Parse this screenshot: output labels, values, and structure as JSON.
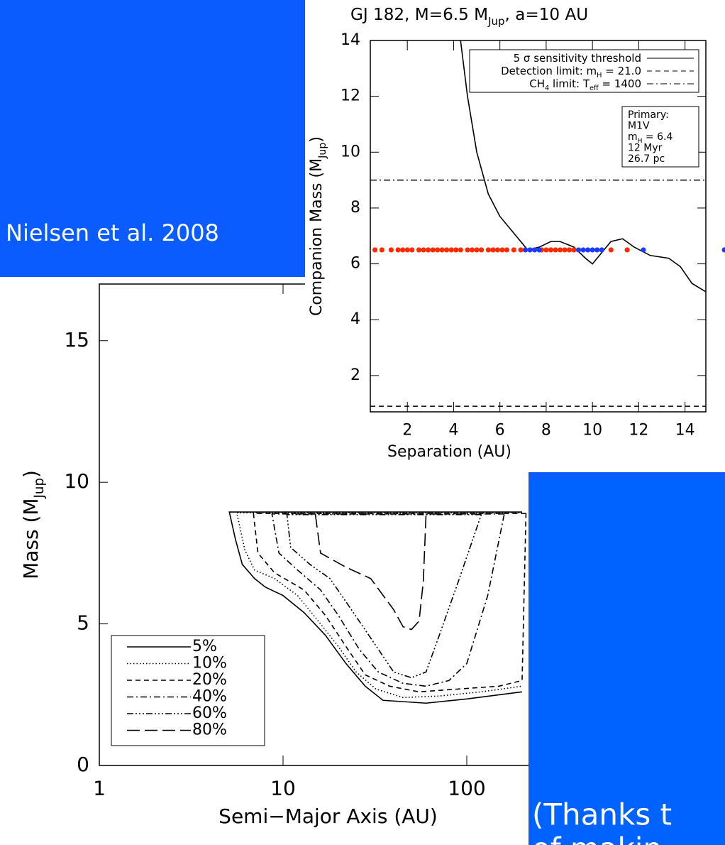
{
  "citation": "Nielsen et al. 2008",
  "thanks_lines": [
    "(Thanks t",
    "of makin"
  ],
  "chart_data": [
    {
      "type": "contour",
      "xlabel": "Semi−Major Axis (AU)",
      "ylabel": [
        "Mass (M",
        "Jup",
        ")"
      ],
      "xscale": "log",
      "xlim": [
        1,
        1000
      ],
      "ylim": [
        0,
        17
      ],
      "xticks": [
        1,
        10,
        100
      ],
      "yticks": [
        0,
        5,
        10,
        15
      ],
      "legend": "lower left",
      "color": "#000000",
      "series": [
        {
          "name": "5%",
          "linestyle": "solid",
          "x": [
            200,
            5.1,
            5.5,
            6,
            7,
            8,
            10,
            13,
            17,
            22,
            28,
            35,
            60,
            100,
            200
          ],
          "values": [
            8.95,
            8.95,
            8.0,
            7.1,
            6.6,
            6.3,
            6.0,
            5.4,
            4.6,
            3.6,
            2.8,
            2.3,
            2.2,
            2.35,
            2.6
          ]
        },
        {
          "name": "10%",
          "linestyle": "dotted",
          "x": [
            200,
            5.6,
            6.2,
            7,
            9,
            12,
            16,
            20,
            25,
            32,
            45,
            70,
            120,
            200
          ],
          "values": [
            8.92,
            8.92,
            7.6,
            6.9,
            6.6,
            6.0,
            5.0,
            4.2,
            3.3,
            2.7,
            2.4,
            2.45,
            2.6,
            2.8
          ]
        },
        {
          "name": "20%",
          "linestyle": "dashed",
          "x": [
            210,
            6.9,
            7.3,
            9,
            13,
            17,
            22,
            28,
            38,
            55,
            90,
            150,
            200,
            205,
            210
          ],
          "values": [
            8.9,
            8.9,
            7.5,
            6.8,
            6.2,
            5.3,
            4.2,
            3.2,
            2.8,
            2.6,
            2.7,
            2.8,
            3.0,
            6.0,
            8.9
          ]
        },
        {
          "name": "40%",
          "linestyle": "dashdot",
          "x": [
            160,
            8.7,
            9.5,
            12,
            16,
            20,
            26,
            33,
            45,
            60,
            80,
            100,
            130,
            160
          ],
          "values": [
            8.88,
            8.88,
            7.5,
            6.9,
            6.2,
            5.3,
            4.1,
            3.3,
            2.9,
            2.8,
            3.0,
            3.6,
            6.0,
            8.88
          ]
        },
        {
          "name": "60%",
          "linestyle": "dashdotdotdot",
          "x": [
            120,
            10.5,
            11,
            14,
            18,
            23,
            30,
            40,
            50,
            60,
            70,
            90,
            120
          ],
          "values": [
            8.86,
            8.86,
            7.7,
            7.1,
            6.6,
            5.6,
            4.5,
            3.3,
            3.1,
            3.3,
            4.5,
            6.5,
            8.86
          ]
        },
        {
          "name": "80%",
          "linestyle": "longdash",
          "x": [
            15,
            16,
            22,
            30,
            40,
            45,
            50,
            55,
            58,
            60
          ],
          "values": [
            8.85,
            7.5,
            7.0,
            6.6,
            5.5,
            4.9,
            4.8,
            5.1,
            6.5,
            8.85
          ]
        }
      ]
    },
    {
      "type": "line",
      "title": [
        "GJ 182, M=6.5 M",
        "Jup",
        ", a=10 AU"
      ],
      "xlabel": "Separation (AU)",
      "ylabel": [
        "Companion Mass (M",
        "Jup",
        ")"
      ],
      "xlim": [
        0.4,
        14.9
      ],
      "ylim": [
        0.7,
        14
      ],
      "xticks": [
        2,
        4,
        6,
        8,
        10,
        12,
        14
      ],
      "yticks": [
        2,
        4,
        6,
        8,
        10,
        12,
        14
      ],
      "legend": "upper right",
      "series": [
        {
          "name": [
            "5 σ sensitivity threshold"
          ],
          "linestyle": "solid",
          "color": "#000000",
          "x": [
            4.3,
            4.6,
            5,
            5.5,
            6,
            6.7,
            7.2,
            7.7,
            8.2,
            8.6,
            9.2,
            9.7,
            10,
            10.4,
            10.8,
            11.3,
            11.8,
            12.5,
            13.3,
            13.8,
            14.3,
            14.9
          ],
          "values": [
            14,
            12,
            10,
            8.5,
            7.7,
            7.0,
            6.5,
            6.6,
            6.8,
            6.8,
            6.6,
            6.2,
            6.0,
            6.4,
            6.8,
            6.9,
            6.6,
            6.3,
            6.2,
            5.9,
            5.3,
            5.0
          ]
        },
        {
          "name": [
            "Detection limit: m",
            "H",
            " = 21.0"
          ],
          "linestyle": "dashed",
          "color": "#000000",
          "y": 0.9
        },
        {
          "name": [
            "CH",
            "4",
            " limit: T",
            "eff",
            " = 1400"
          ],
          "linestyle": "dashdot",
          "color": "#000000",
          "y": 9.0
        }
      ],
      "points": [
        {
          "color": "#ff2a00",
          "x": [
            0.6,
            0.9,
            1.3,
            1.6,
            1.8,
            2.0,
            2.2,
            2.5,
            2.7,
            2.9,
            3.1,
            3.3,
            3.5,
            3.7,
            3.9,
            4.1,
            4.3,
            4.6,
            4.8,
            5.0,
            5.2,
            5.5,
            5.7,
            5.9,
            6.1,
            6.3,
            6.6,
            6.9,
            7.8,
            8.0,
            8.2,
            8.4,
            8.6,
            8.8,
            9.0,
            9.2,
            10.8,
            11.5
          ],
          "values": [
            6.5,
            6.5,
            6.5,
            6.5,
            6.5,
            6.5,
            6.5,
            6.5,
            6.5,
            6.5,
            6.5,
            6.5,
            6.5,
            6.5,
            6.5,
            6.5,
            6.5,
            6.5,
            6.5,
            6.5,
            6.5,
            6.5,
            6.5,
            6.5,
            6.5,
            6.5,
            6.5,
            6.5,
            6.5,
            6.5,
            6.5,
            6.5,
            6.5,
            6.5,
            6.5,
            6.5,
            6.5,
            6.5
          ]
        },
        {
          "color": "#1a3cff",
          "x": [
            7.1,
            7.3,
            7.5,
            7.7,
            9.4,
            9.6,
            9.8,
            10.0,
            10.2,
            10.4,
            12.2,
            15.7
          ],
          "values": [
            6.5,
            6.5,
            6.5,
            6.5,
            6.5,
            6.5,
            6.5,
            6.5,
            6.5,
            6.5,
            6.5,
            6.5
          ]
        }
      ],
      "annotation": [
        [
          "Primary:"
        ],
        [
          "M1V"
        ],
        [
          "m",
          "H",
          " = 6.4"
        ],
        [
          "12 Myr"
        ],
        [
          "26.7 pc"
        ]
      ]
    }
  ]
}
